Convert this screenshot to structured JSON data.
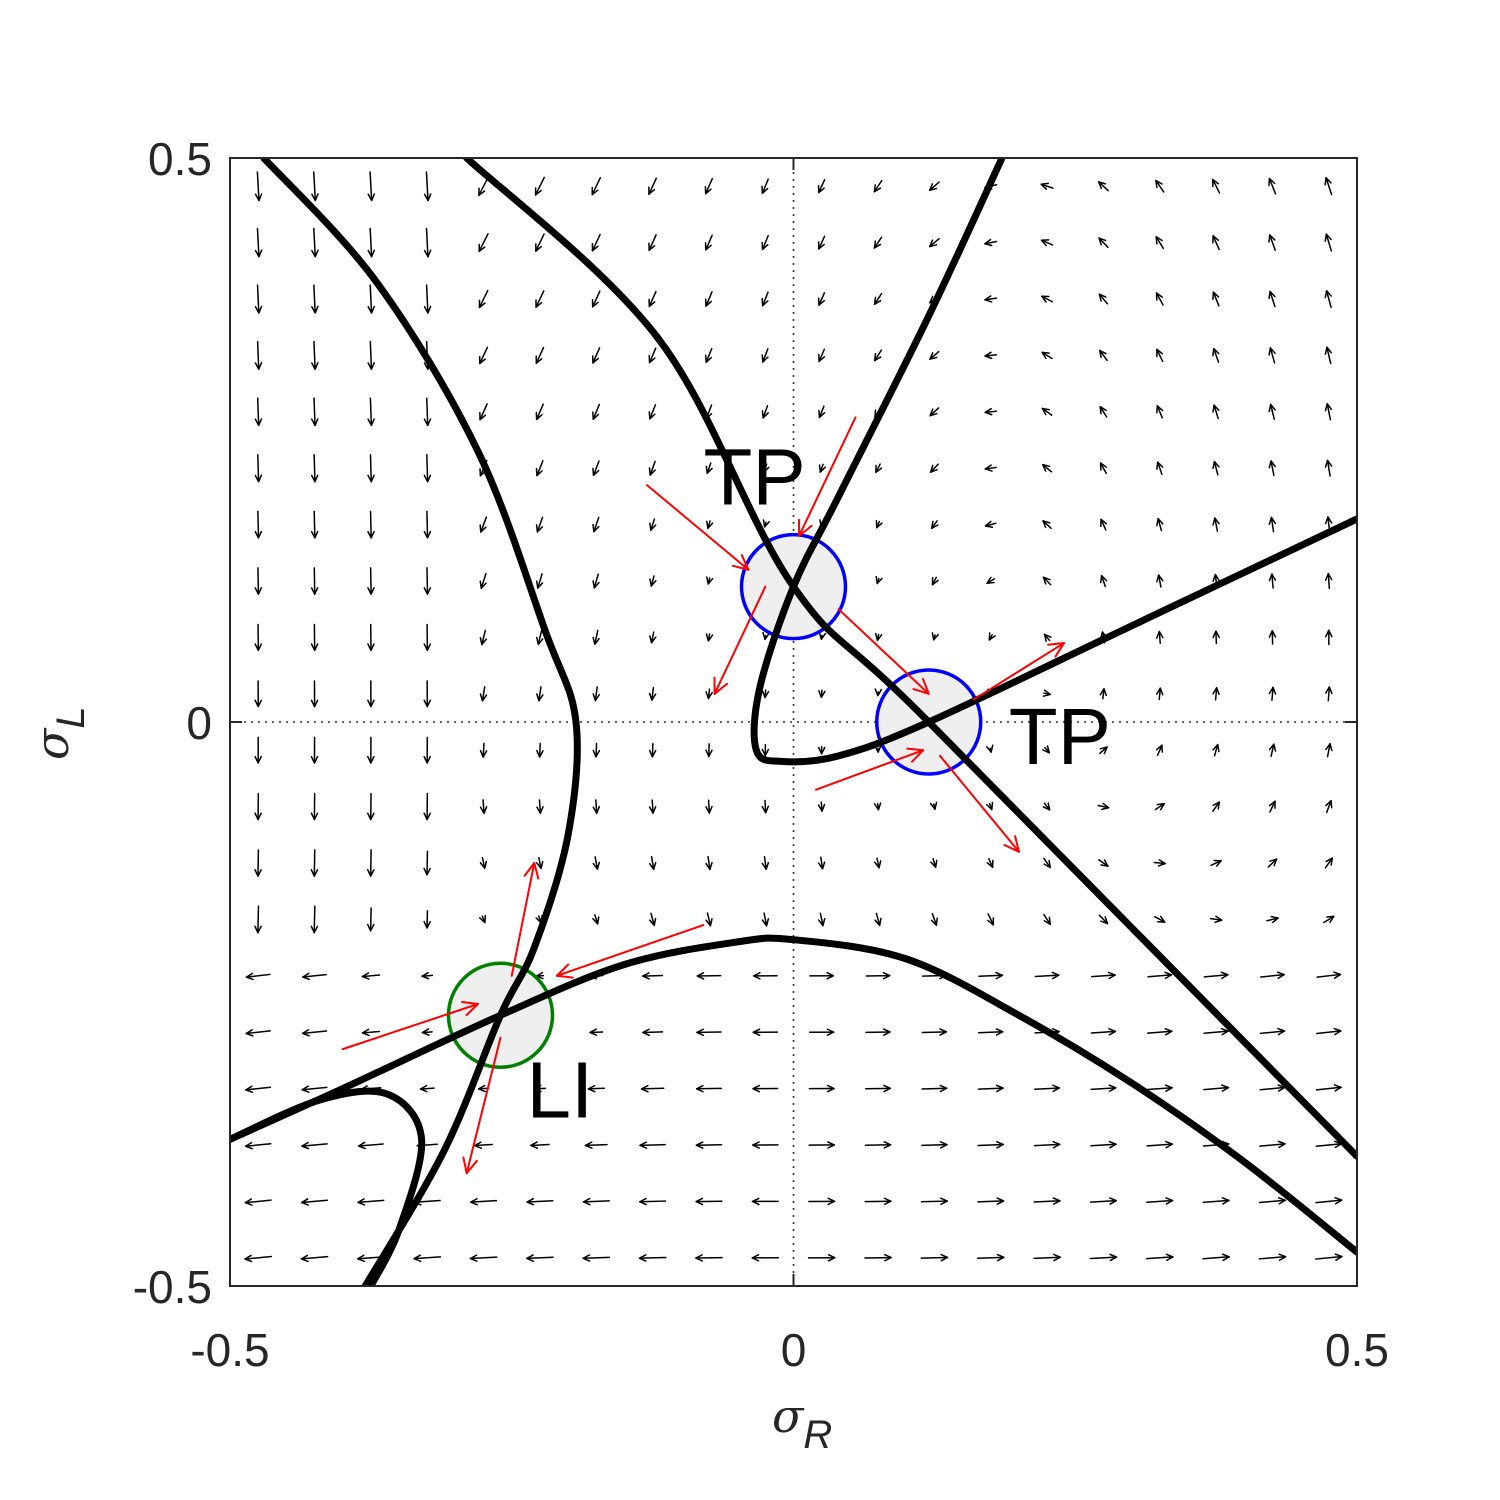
{
  "chart_data": {
    "type": "scatter",
    "plot_kind": "phase portrait (vector field with curves)",
    "xlabel": {
      "symbol": "σ",
      "subscript": "R"
    },
    "ylabel": {
      "symbol": "σ",
      "subscript": "L"
    },
    "xlim": [
      -0.5,
      0.5
    ],
    "ylim": [
      -0.5,
      0.5
    ],
    "x_ticks": [
      {
        "value": -0.5,
        "label": "-0.5"
      },
      {
        "value": 0,
        "label": "0"
      },
      {
        "value": 0.5,
        "label": "0.5"
      }
    ],
    "y_ticks": [
      {
        "value": -0.5,
        "label": "-0.5"
      },
      {
        "value": 0,
        "label": "0"
      },
      {
        "value": 0.5,
        "label": "0.5"
      }
    ],
    "grid": false,
    "zero_lines": "dotted",
    "colors": {
      "curve": "#000000",
      "field_arrow": "#000000",
      "eigen_arrow": "#ff0000",
      "tp_circle": "#0000ff",
      "li_circle": "#008000",
      "circle_fill": "#efefef"
    },
    "curves": [
      {
        "points": [
          [
            -0.29,
            0.5
          ],
          [
            -0.12,
            0.34
          ],
          [
            0.0,
            0.12
          ],
          [
            0.12,
            0.0
          ],
          [
            0.5,
            -0.385
          ]
        ]
      },
      {
        "points": [
          [
            0.185,
            0.5
          ],
          [
            0.12,
            0.36
          ],
          [
            0.04,
            0.2
          ],
          [
            0.0,
            0.12
          ],
          [
            -0.03,
            0.03
          ],
          [
            -0.033,
            -0.025
          ],
          [
            -0.01,
            -0.035
          ],
          [
            0.04,
            -0.03
          ],
          [
            0.12,
            0.0
          ],
          [
            0.31,
            0.09
          ],
          [
            0.5,
            0.18
          ]
        ]
      },
      {
        "points": [
          [
            -0.47,
            0.5
          ],
          [
            -0.37,
            0.39
          ],
          [
            -0.28,
            0.24
          ],
          [
            -0.22,
            0.08
          ],
          [
            -0.193,
            0.0
          ],
          [
            -0.2,
            -0.1
          ],
          [
            -0.23,
            -0.2
          ],
          [
            -0.26,
            -0.26
          ],
          [
            -0.31,
            -0.38
          ],
          [
            -0.38,
            -0.5
          ]
        ]
      },
      {
        "points": [
          [
            -0.5,
            -0.37
          ],
          [
            -0.4,
            -0.325
          ],
          [
            -0.26,
            -0.26
          ],
          [
            -0.15,
            -0.215
          ],
          [
            -0.05,
            -0.195
          ],
          [
            0.0,
            -0.193
          ],
          [
            0.1,
            -0.21
          ],
          [
            0.2,
            -0.26
          ],
          [
            0.3,
            -0.32
          ],
          [
            0.4,
            -0.39
          ],
          [
            0.5,
            -0.47
          ]
        ]
      },
      {
        "points": [
          [
            -0.5,
            -0.37
          ],
          [
            -0.42,
            -0.335
          ],
          [
            -0.36,
            -0.33
          ],
          [
            -0.33,
            -0.37
          ],
          [
            -0.35,
            -0.45
          ],
          [
            -0.375,
            -0.5
          ]
        ]
      }
    ],
    "markers": [
      {
        "label": "TP",
        "x": 0.0,
        "y": 0.12,
        "kind": "tp",
        "label_pos": "above-left"
      },
      {
        "label": "TP",
        "x": 0.12,
        "y": 0.0,
        "kind": "tp",
        "label_pos": "right"
      },
      {
        "label": "LI",
        "x": -0.26,
        "y": -0.26,
        "kind": "li",
        "label_pos": "below-right"
      }
    ],
    "eigen_arrows": [
      {
        "from": [
          -0.13,
          0.21
        ],
        "to": [
          -0.04,
          0.135
        ]
      },
      {
        "from": [
          0.055,
          0.27
        ],
        "to": [
          0.005,
          0.165
        ]
      },
      {
        "from": [
          0.04,
          0.1
        ],
        "to": [
          0.12,
          0.025
        ]
      },
      {
        "from": [
          -0.025,
          0.12
        ],
        "to": [
          -0.07,
          0.025
        ]
      },
      {
        "from": [
          0.16,
          0.02
        ],
        "to": [
          0.24,
          0.07
        ]
      },
      {
        "from": [
          0.02,
          -0.06
        ],
        "to": [
          0.115,
          -0.025
        ]
      },
      {
        "from": [
          0.13,
          -0.03
        ],
        "to": [
          0.2,
          -0.115
        ]
      },
      {
        "from": [
          -0.4,
          -0.29
        ],
        "to": [
          -0.28,
          -0.25
        ]
      },
      {
        "from": [
          -0.08,
          -0.18
        ],
        "to": [
          -0.21,
          -0.225
        ]
      },
      {
        "from": [
          -0.25,
          -0.225
        ],
        "to": [
          -0.23,
          -0.125
        ]
      },
      {
        "from": [
          -0.26,
          -0.28
        ],
        "to": [
          -0.29,
          -0.4
        ]
      }
    ]
  }
}
